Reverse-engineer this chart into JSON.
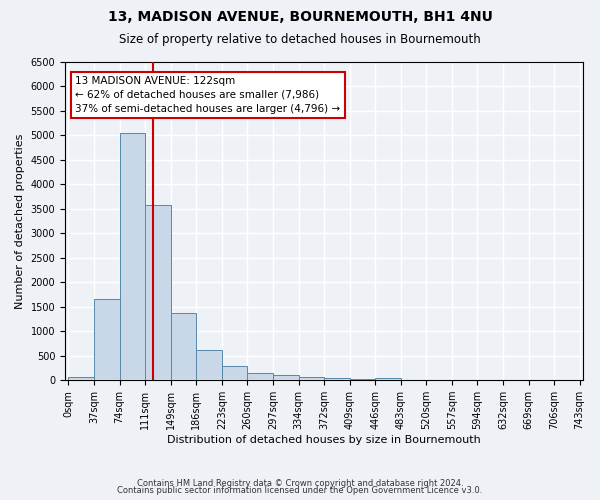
{
  "title": "13, MADISON AVENUE, BOURNEMOUTH, BH1 4NU",
  "subtitle": "Size of property relative to detached houses in Bournemouth",
  "xlabel": "Distribution of detached houses by size in Bournemouth",
  "ylabel": "Number of detached properties",
  "bar_color": "#c8d8e8",
  "bar_edge_color": "#5588aa",
  "bar_values": [
    70,
    1650,
    5050,
    3580,
    1380,
    620,
    290,
    155,
    105,
    70,
    55,
    35,
    40,
    0,
    0,
    0,
    0,
    0,
    0,
    0
  ],
  "bin_edges": [
    0,
    37,
    74,
    111,
    148,
    185,
    222,
    259,
    296,
    333,
    370,
    407,
    444,
    481,
    518,
    555,
    592,
    629,
    666,
    703,
    740
  ],
  "x_tick_labels": [
    "0sqm",
    "37sqm",
    "74sqm",
    "111sqm",
    "149sqm",
    "186sqm",
    "223sqm",
    "260sqm",
    "297sqm",
    "334sqm",
    "372sqm",
    "409sqm",
    "446sqm",
    "483sqm",
    "520sqm",
    "557sqm",
    "594sqm",
    "632sqm",
    "669sqm",
    "706sqm",
    "743sqm"
  ],
  "ylim": [
    0,
    6500
  ],
  "yticks": [
    0,
    500,
    1000,
    1500,
    2000,
    2500,
    3000,
    3500,
    4000,
    4500,
    5000,
    5500,
    6000,
    6500
  ],
  "red_line_x": 122,
  "annotation_title": "13 MADISON AVENUE: 122sqm",
  "annotation_line1": "← 62% of detached houses are smaller (7,986)",
  "annotation_line2": "37% of semi-detached houses are larger (4,796) →",
  "footer1": "Contains HM Land Registry data © Crown copyright and database right 2024.",
  "footer2": "Contains public sector information licensed under the Open Government Licence v3.0.",
  "background_color": "#eef2f7",
  "grid_color": "#ffffff",
  "annotation_box_color": "#ffffff",
  "annotation_border_color": "#cc0000",
  "red_line_color": "#cc0000"
}
